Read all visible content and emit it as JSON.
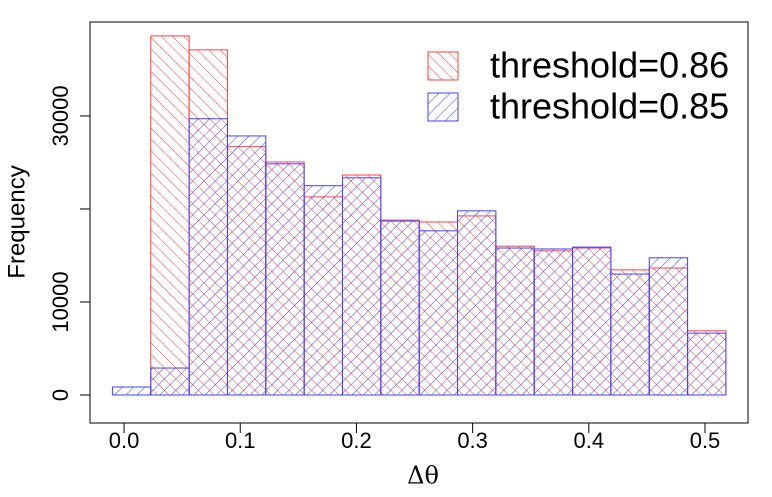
{
  "chart_data": {
    "type": "histogram",
    "x_label": "Δθ",
    "y_label": "Frequency",
    "bins": [
      -0.01,
      0.023,
      0.056,
      0.089,
      0.122,
      0.155,
      0.188,
      0.221,
      0.254,
      0.287,
      0.32,
      0.353,
      0.386,
      0.419,
      0.452,
      0.485,
      0.518
    ],
    "series": [
      {
        "name": "threshold=0.86",
        "color": "#ff4040",
        "hatch_angle": 45,
        "values": [
          0,
          38600,
          37100,
          26700,
          25050,
          21300,
          23650,
          18800,
          18600,
          19250,
          16000,
          15500,
          15800,
          13450,
          13650,
          6900
        ]
      },
      {
        "name": "threshold=0.85",
        "color": "#4040ff",
        "hatch_angle": -45,
        "values": [
          860,
          2900,
          29700,
          27850,
          24850,
          22500,
          23350,
          18700,
          17650,
          19800,
          15800,
          15700,
          15900,
          13000,
          14750,
          6650
        ]
      }
    ],
    "xlim": [
      -0.0293,
      0.537
    ],
    "ylim": [
      -3010,
      40100
    ],
    "xticks": [
      {
        "value": 0,
        "label": "0.0"
      },
      0.1,
      0.2,
      0.3,
      0.4,
      0.5
    ],
    "yticks": [
      0,
      10000,
      {
        "value": 20000,
        "label": null
      },
      30000
    ],
    "legend": "top-right"
  }
}
